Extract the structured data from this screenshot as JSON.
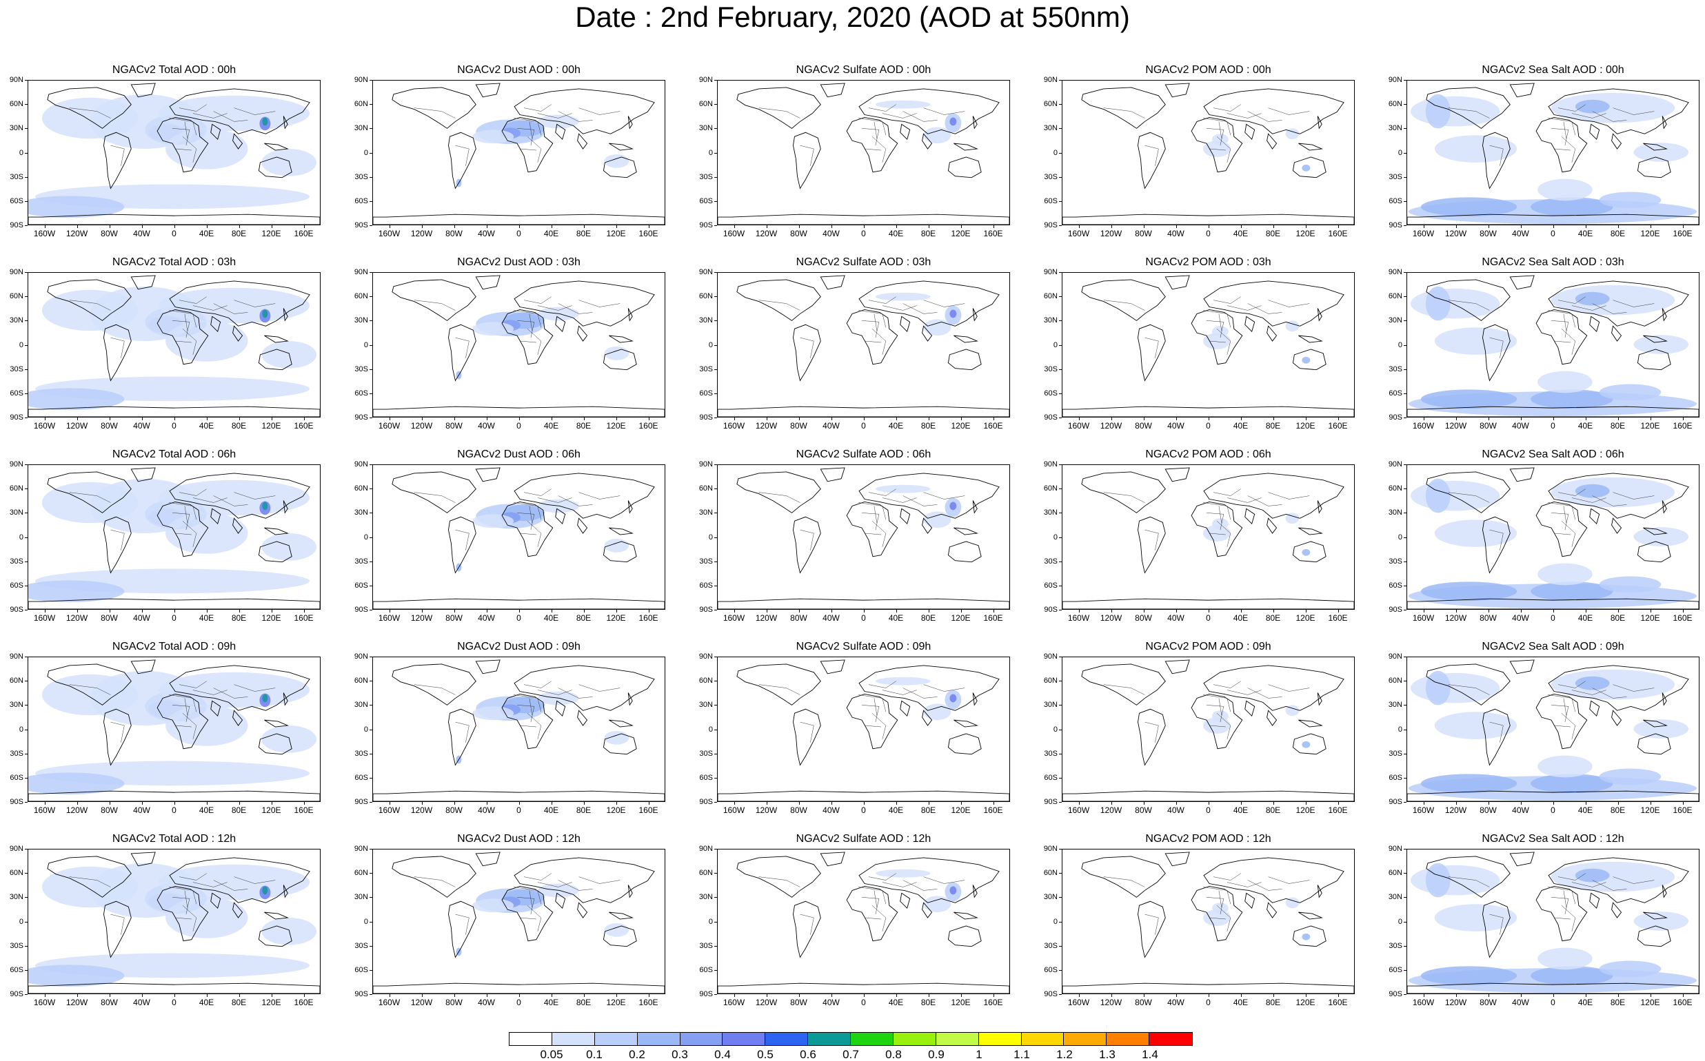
{
  "title": "Date : 2nd February, 2020 (AOD at 550nm)",
  "panel_titles": [
    [
      "NGACv2 Total AOD : 00h",
      "NGACv2 Dust AOD : 00h",
      "NGACv2 Sulfate AOD : 00h",
      "NGACv2 POM AOD : 00h",
      "NGACv2 Sea Salt AOD : 00h"
    ],
    [
      "NGACv2 Total AOD : 03h",
      "NGACv2 Dust AOD : 03h",
      "NGACv2 Sulfate AOD : 03h",
      "NGACv2 POM AOD : 03h",
      "NGACv2 Sea Salt AOD : 03h"
    ],
    [
      "NGACv2 Total AOD : 06h",
      "NGACv2 Dust AOD : 06h",
      "NGACv2 Sulfate AOD : 06h",
      "NGACv2 POM AOD : 06h",
      "NGACv2 Sea Salt AOD : 06h"
    ],
    [
      "NGACv2 Total AOD : 09h",
      "NGACv2 Dust AOD : 09h",
      "NGACv2 Sulfate AOD : 09h",
      "NGACv2 POM AOD : 09h",
      "NGACv2 Sea Salt  AOD : 09h"
    ],
    [
      "NGACv2 Total AOD  : 12h",
      "NGACv2 Dust AOD : 12h",
      "NGACv2 Sulfate AOD : 12h",
      "NGACv2 POM  AOD : 12h",
      "NGACv2 Sea Salt  AOD : 12h"
    ]
  ],
  "lat_labels": [
    "90N",
    "60N",
    "30N",
    "0",
    "30S",
    "60S",
    "90S"
  ],
  "lon_labels": [
    "160W",
    "120W",
    "80W",
    "40W",
    "0",
    "40E",
    "80E",
    "120E",
    "160E"
  ],
  "colorbar": {
    "labels": [
      "0.05",
      "0.1",
      "0.2",
      "0.3",
      "0.4",
      "0.5",
      "0.6",
      "0.7",
      "0.8",
      "0.9",
      "1",
      "1.1",
      "1.2",
      "1.3",
      "1.4"
    ],
    "colors": [
      "#ffffff",
      "#d5e2fb",
      "#b9cefa",
      "#9bb8f6",
      "#859ff3",
      "#6f7ef0",
      "#2e64f2",
      "#0d9a96",
      "#1ed30f",
      "#98f00d",
      "#c2fa47",
      "#ffff00",
      "#ffd700",
      "#ffaa00",
      "#ff8000",
      "#ff0000"
    ]
  },
  "coast_color": "#000000"
}
